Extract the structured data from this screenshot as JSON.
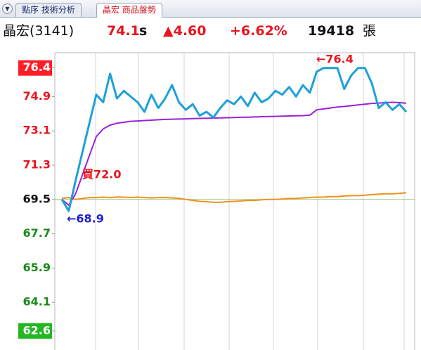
{
  "tabs": [
    "點序 技術分析",
    "晶宏 商品盤勢"
  ],
  "header": {
    "stock": "晶宏(3141)",
    "price": "74.1",
    "flag": "s",
    "change": "▲4.60",
    "change_pct": "+6.62%",
    "volume": "19418",
    "volume_unit": "張"
  },
  "chart_data": {
    "type": "line",
    "ylim": [
      61.6,
      77.2
    ],
    "yticks": [
      76.4,
      74.9,
      73.1,
      71.3,
      69.5,
      67.7,
      65.9,
      64.1,
      62.6
    ],
    "reference_line": 69.5,
    "annotations": [
      "←76.4",
      "←68.9",
      "買72.0"
    ],
    "series": [
      {
        "color": "#1ea0d8",
        "values": [
          69.5,
          68.9,
          70.5,
          72.0,
          73.5,
          75.0,
          74.6,
          76.1,
          74.8,
          75.2,
          74.9,
          74.6,
          74.1,
          75.0,
          74.3,
          74.8,
          75.5,
          74.6,
          74.2,
          74.5,
          73.9,
          74.1,
          73.8,
          74.3,
          74.7,
          74.5,
          74.9,
          74.4,
          75.1,
          74.6,
          74.8,
          75.2,
          75.0,
          75.4,
          74.9,
          75.5,
          75.1,
          76.2,
          76.4,
          76.4,
          76.4,
          75.3,
          76.0,
          76.4,
          76.4,
          75.6,
          74.3,
          74.6,
          74.2,
          74.5,
          74.1
        ]
      },
      {
        "color": "#9a22d8",
        "values": [
          69.5,
          69.2,
          69.8,
          70.8,
          71.8,
          72.8,
          73.2,
          73.4,
          73.5,
          73.55,
          73.6,
          73.62,
          73.64,
          73.66,
          73.68,
          73.7,
          73.71,
          73.72,
          73.73,
          73.74,
          73.75,
          73.76,
          73.77,
          73.78,
          73.79,
          73.8,
          73.81,
          73.82,
          73.83,
          73.84,
          73.85,
          73.86,
          73.87,
          73.88,
          73.89,
          73.9,
          73.92,
          74.2,
          74.25,
          74.3,
          74.35,
          74.38,
          74.42,
          74.46,
          74.5,
          74.54,
          74.56,
          74.58,
          74.6,
          74.58,
          74.55
        ]
      },
      {
        "color": "#f0901e",
        "values": [
          69.55,
          69.6,
          69.5,
          69.55,
          69.6,
          69.6,
          69.62,
          69.6,
          69.63,
          69.62,
          69.6,
          69.62,
          69.6,
          69.58,
          69.6,
          69.6,
          69.58,
          69.55,
          69.5,
          69.45,
          69.4,
          69.38,
          69.35,
          69.35,
          69.38,
          69.4,
          69.42,
          69.45,
          69.45,
          69.48,
          69.5,
          69.5,
          69.52,
          69.55,
          69.55,
          69.58,
          69.6,
          69.62,
          69.62,
          69.65,
          69.65,
          69.68,
          69.7,
          69.7,
          69.72,
          69.75,
          69.78,
          69.8,
          69.8,
          69.82,
          69.85
        ]
      }
    ]
  }
}
